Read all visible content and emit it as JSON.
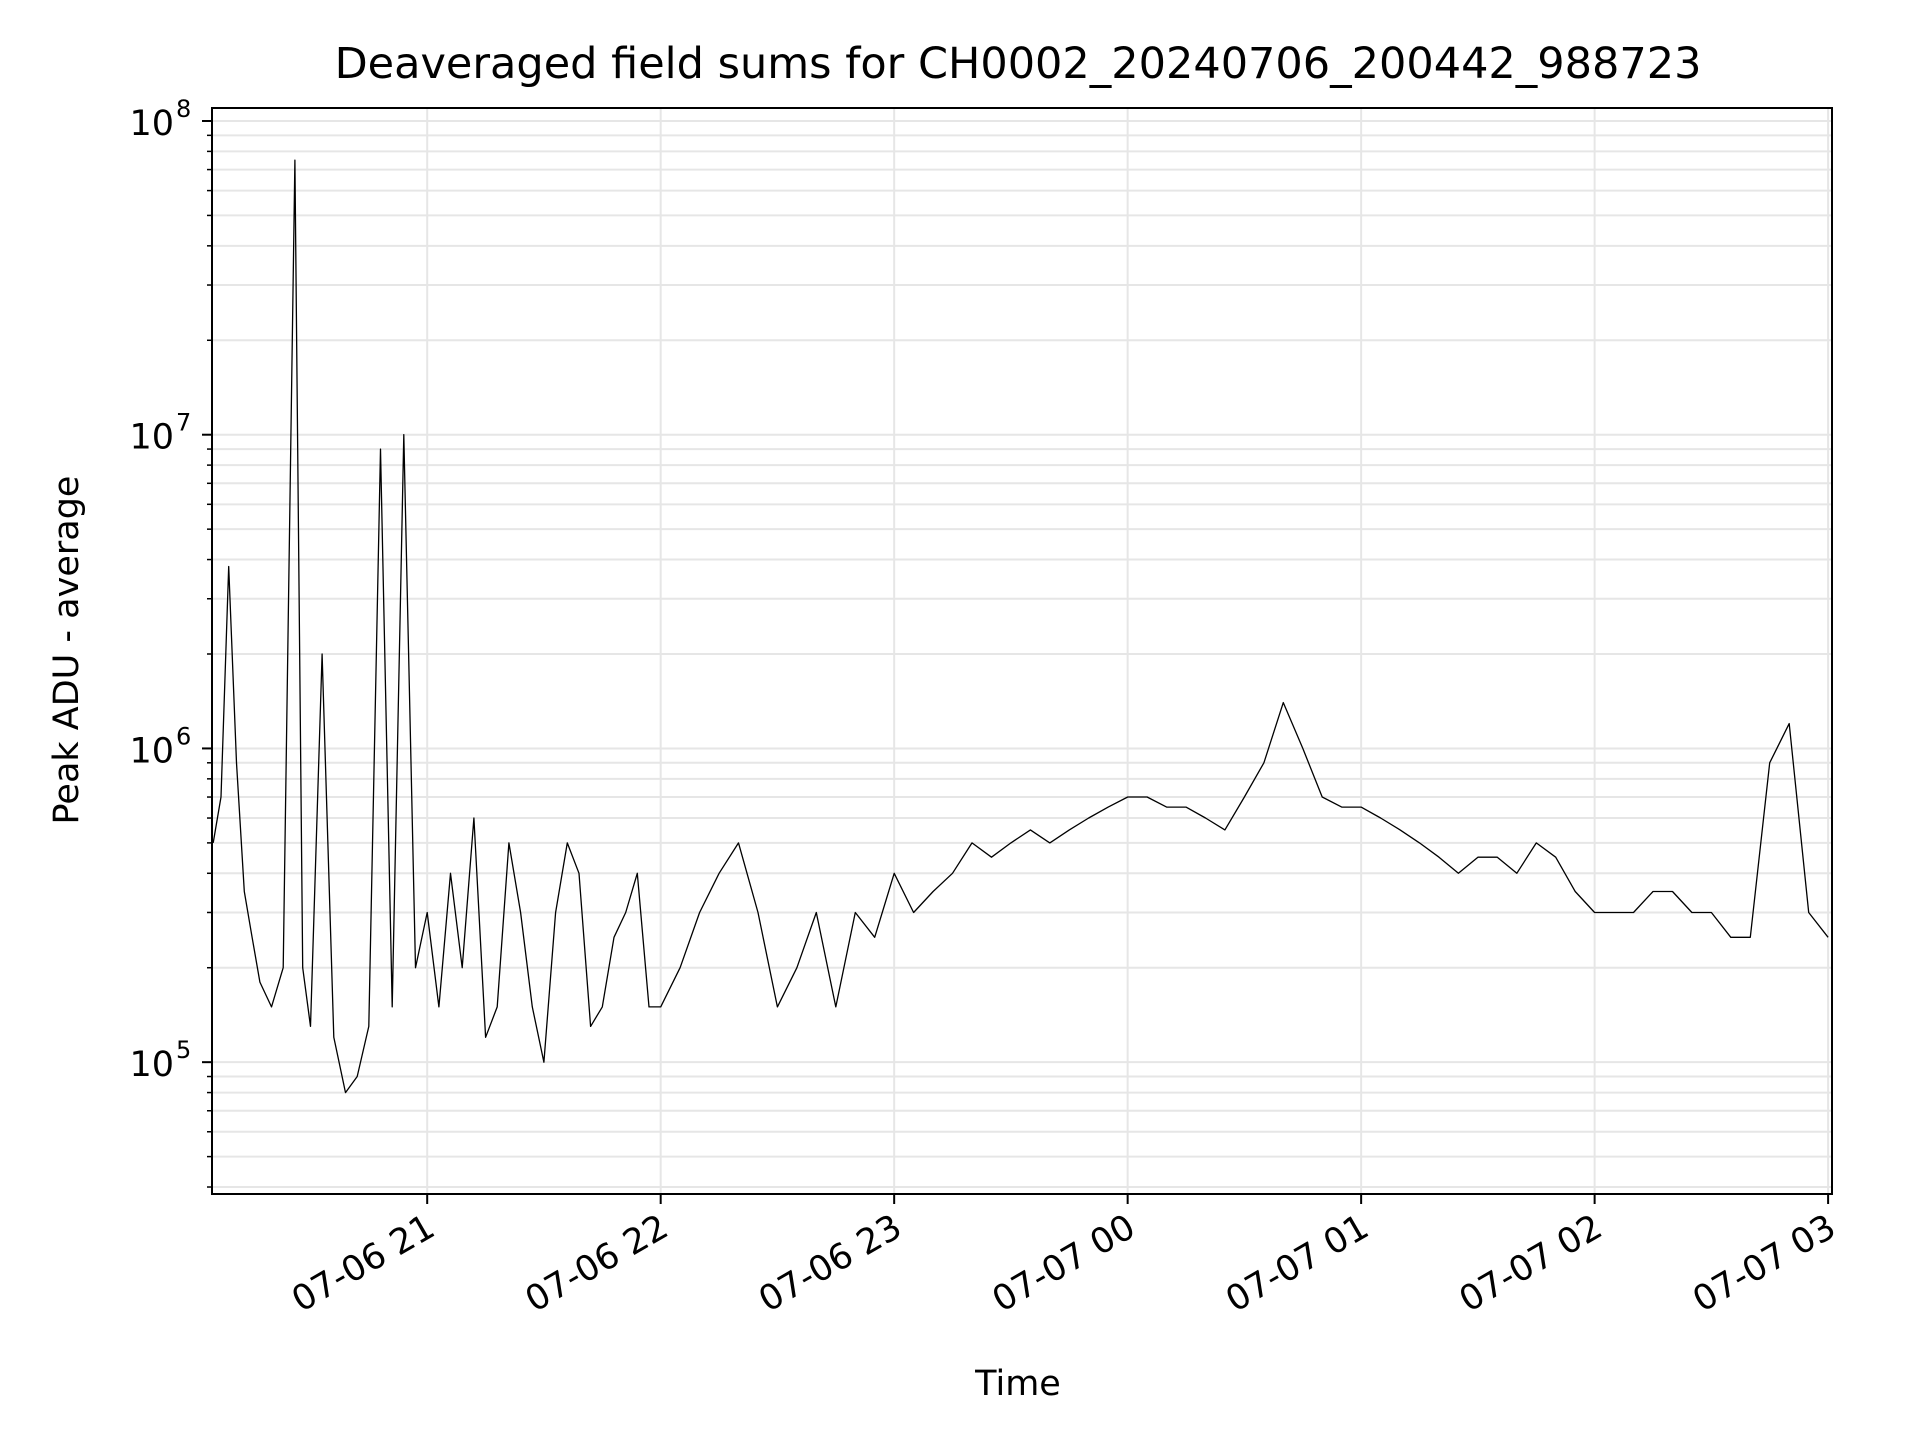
{
  "chart_data": {
    "type": "line",
    "title": "Deaveraged field sums for CH0002_20240706_200442_988723",
    "xlabel": "Time",
    "ylabel": "Peak ADU - average",
    "yscale": "log",
    "ylim": [
      38000,
      110000000
    ],
    "xlim": [
      "2024-07-06T20:04:42",
      "2024-07-07T03:01:00"
    ],
    "grid": true,
    "line_color": "#000000",
    "grid_color": "#e6e6e6",
    "x_ticks": [
      {
        "t": "2024-07-06T21:00:00",
        "label": "07-06 21"
      },
      {
        "t": "2024-07-06T22:00:00",
        "label": "07-06 22"
      },
      {
        "t": "2024-07-06T23:00:00",
        "label": "07-06 23"
      },
      {
        "t": "2024-07-07T00:00:00",
        "label": "07-07 00"
      },
      {
        "t": "2024-07-07T01:00:00",
        "label": "07-07 01"
      },
      {
        "t": "2024-07-07T02:00:00",
        "label": "07-07 02"
      },
      {
        "t": "2024-07-07T03:00:00",
        "label": "07-07 03"
      }
    ],
    "y_ticks": [
      {
        "value": 100000,
        "base": "10",
        "exp": "5"
      },
      {
        "value": 1000000,
        "base": "10",
        "exp": "6"
      },
      {
        "value": 10000000,
        "base": "10",
        "exp": "7"
      },
      {
        "value": 100000000,
        "base": "10",
        "exp": "8"
      }
    ],
    "series": [
      {
        "x": [
          "2024-07-06T20:05:00",
          "2024-07-06T20:07:00",
          "2024-07-06T20:09:00",
          "2024-07-06T20:11:00",
          "2024-07-06T20:13:00",
          "2024-07-06T20:15:00",
          "2024-07-06T20:17:00",
          "2024-07-06T20:20:00",
          "2024-07-06T20:23:00",
          "2024-07-06T20:26:00",
          "2024-07-06T20:28:00",
          "2024-07-06T20:30:00",
          "2024-07-06T20:33:00",
          "2024-07-06T20:36:00",
          "2024-07-06T20:39:00",
          "2024-07-06T20:42:00",
          "2024-07-06T20:45:00",
          "2024-07-06T20:48:00",
          "2024-07-06T20:51:00",
          "2024-07-06T20:54:00",
          "2024-07-06T20:57:00",
          "2024-07-06T21:00:00",
          "2024-07-06T21:03:00",
          "2024-07-06T21:06:00",
          "2024-07-06T21:09:00",
          "2024-07-06T21:12:00",
          "2024-07-06T21:15:00",
          "2024-07-06T21:18:00",
          "2024-07-06T21:21:00",
          "2024-07-06T21:24:00",
          "2024-07-06T21:27:00",
          "2024-07-06T21:30:00",
          "2024-07-06T21:33:00",
          "2024-07-06T21:36:00",
          "2024-07-06T21:39:00",
          "2024-07-06T21:42:00",
          "2024-07-06T21:45:00",
          "2024-07-06T21:48:00",
          "2024-07-06T21:51:00",
          "2024-07-06T21:54:00",
          "2024-07-06T21:57:00",
          "2024-07-06T22:00:00",
          "2024-07-06T22:05:00",
          "2024-07-06T22:10:00",
          "2024-07-06T22:15:00",
          "2024-07-06T22:20:00",
          "2024-07-06T22:25:00",
          "2024-07-06T22:30:00",
          "2024-07-06T22:35:00",
          "2024-07-06T22:40:00",
          "2024-07-06T22:45:00",
          "2024-07-06T22:50:00",
          "2024-07-06T22:55:00",
          "2024-07-06T23:00:00",
          "2024-07-06T23:05:00",
          "2024-07-06T23:10:00",
          "2024-07-06T23:15:00",
          "2024-07-06T23:20:00",
          "2024-07-06T23:25:00",
          "2024-07-06T23:30:00",
          "2024-07-06T23:35:00",
          "2024-07-06T23:40:00",
          "2024-07-06T23:45:00",
          "2024-07-06T23:50:00",
          "2024-07-06T23:55:00",
          "2024-07-07T00:00:00",
          "2024-07-07T00:05:00",
          "2024-07-07T00:10:00",
          "2024-07-07T00:15:00",
          "2024-07-07T00:20:00",
          "2024-07-07T00:25:00",
          "2024-07-07T00:30:00",
          "2024-07-07T00:35:00",
          "2024-07-07T00:40:00",
          "2024-07-07T00:45:00",
          "2024-07-07T00:50:00",
          "2024-07-07T00:55:00",
          "2024-07-07T01:00:00",
          "2024-07-07T01:05:00",
          "2024-07-07T01:10:00",
          "2024-07-07T01:15:00",
          "2024-07-07T01:20:00",
          "2024-07-07T01:25:00",
          "2024-07-07T01:30:00",
          "2024-07-07T01:35:00",
          "2024-07-07T01:40:00",
          "2024-07-07T01:45:00",
          "2024-07-07T01:50:00",
          "2024-07-07T01:55:00",
          "2024-07-07T02:00:00",
          "2024-07-07T02:05:00",
          "2024-07-07T02:10:00",
          "2024-07-07T02:15:00",
          "2024-07-07T02:20:00",
          "2024-07-07T02:25:00",
          "2024-07-07T02:30:00",
          "2024-07-07T02:35:00",
          "2024-07-07T02:40:00",
          "2024-07-07T02:45:00",
          "2024-07-07T02:50:00",
          "2024-07-07T02:55:00",
          "2024-07-07T03:00:00"
        ],
        "y": [
          500000,
          700000,
          3800000,
          900000,
          350000,
          250000,
          180000,
          150000,
          200000,
          75000000,
          200000,
          130000,
          2000000,
          120000,
          80000,
          90000,
          130000,
          9000000,
          150000,
          10000000,
          200000,
          300000,
          150000,
          400000,
          200000,
          600000,
          120000,
          150000,
          500000,
          300000,
          150000,
          100000,
          300000,
          500000,
          400000,
          130000,
          150000,
          250000,
          300000,
          400000,
          150000,
          150000,
          200000,
          300000,
          400000,
          500000,
          300000,
          150000,
          200000,
          300000,
          150000,
          300000,
          250000,
          400000,
          300000,
          350000,
          400000,
          500000,
          450000,
          500000,
          550000,
          500000,
          550000,
          600000,
          650000,
          700000,
          700000,
          650000,
          650000,
          600000,
          550000,
          700000,
          900000,
          1400000,
          1000000,
          700000,
          650000,
          650000,
          600000,
          550000,
          500000,
          450000,
          400000,
          450000,
          450000,
          400000,
          500000,
          450000,
          350000,
          300000,
          300000,
          300000,
          350000,
          350000,
          300000,
          300000,
          250000,
          250000,
          900000,
          1200000,
          300000,
          250000
        ]
      }
    ]
  }
}
